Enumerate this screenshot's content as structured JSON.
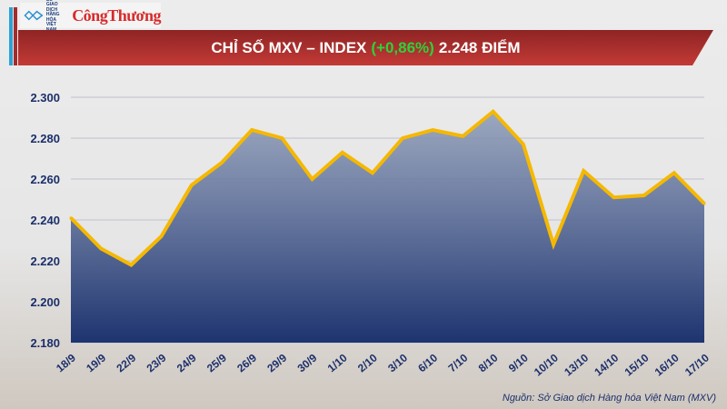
{
  "header": {
    "logo_text": "SỞ GIAO DỊCH HÀNG HÓA VIỆT NAM",
    "publisher": "CôngThương",
    "title_prefix": "CHỈ SỐ MXV – INDEX",
    "title_change": "(+0,86%)",
    "title_suffix": "2.248 ĐIỂM"
  },
  "colors": {
    "line": "#f5b800",
    "area_top": "#8e9cb8",
    "area_bottom": "#1e3470",
    "change": "#2ed13a",
    "banner": "#b3302e"
  },
  "chart_data": {
    "type": "area",
    "title": "CHỈ SỐ MXV – INDEX (+0,86%) 2.248 ĐIỂM",
    "categories": [
      "18/9",
      "19/9",
      "22/9",
      "23/9",
      "24/9",
      "25/9",
      "26/9",
      "29/9",
      "30/9",
      "1/10",
      "2/10",
      "3/10",
      "6/10",
      "7/10",
      "8/10",
      "9/10",
      "10/10",
      "13/10",
      "14/10",
      "15/10",
      "16/10",
      "17/10"
    ],
    "values": [
      2241,
      2226,
      2218,
      2232,
      2257,
      2268,
      2284,
      2280,
      2260,
      2273,
      2263,
      2280,
      2284,
      2281,
      2293,
      2277,
      2228,
      2264,
      2251,
      2252,
      2263,
      2248
    ],
    "ylim": [
      2180,
      2300
    ],
    "yticks": [
      "2.180",
      "2.200",
      "2.220",
      "2.240",
      "2.260",
      "2.280",
      "2.300"
    ],
    "grid": true,
    "xlabel": "",
    "ylabel": ""
  },
  "source": "Nguồn: Sở Giao dịch Hàng hóa Việt Nam (MXV)"
}
